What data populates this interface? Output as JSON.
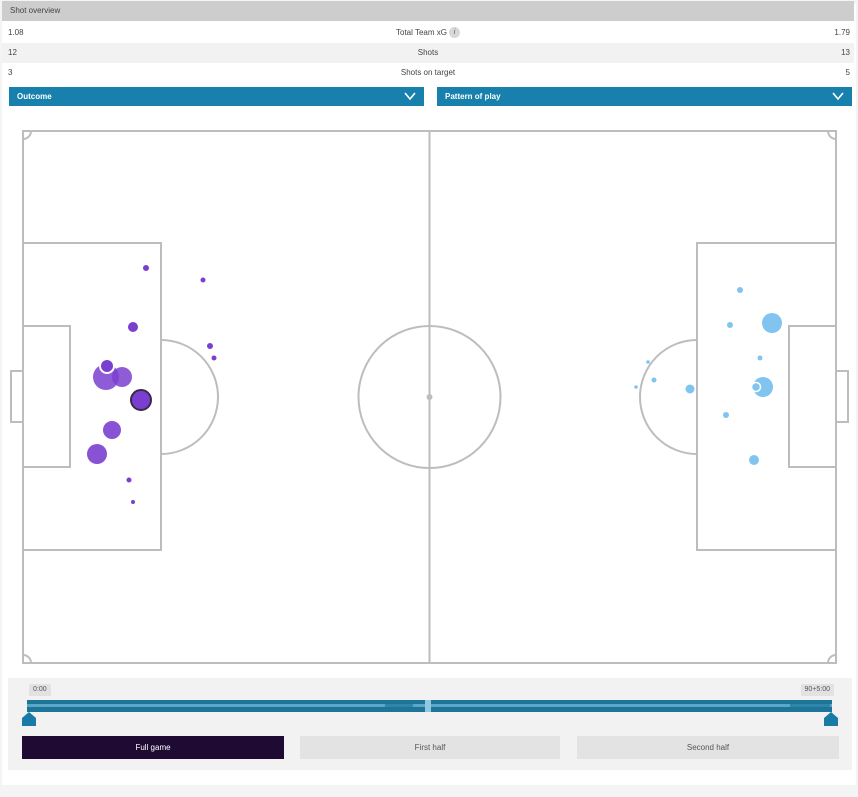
{
  "header": {
    "title": "Shot overview"
  },
  "stats": [
    {
      "home": "1.08",
      "label": "Total Team xG",
      "away": "1.79",
      "info": true
    },
    {
      "home": "12",
      "label": "Shots",
      "away": "13",
      "info": false
    },
    {
      "home": "3",
      "label": "Shots on target",
      "away": "5",
      "info": false
    }
  ],
  "filters": {
    "outcome_label": "Outcome",
    "pattern_label": "Pattern of play"
  },
  "colors": {
    "home_shot": "#7b3fd0",
    "away_shot": "#82c4f0",
    "accent": "#1780ad",
    "active_button": "#1e0a33"
  },
  "timeline": {
    "start_label": "0:00",
    "end_label": "90+5:00"
  },
  "period_buttons": {
    "full_game": "Full game",
    "first_half": "First half",
    "second_half": "Second half",
    "selected": "full_game"
  },
  "icons": {
    "info": "info-icon",
    "dropdown": "chevron-down-icon",
    "slider_handle": "slider-handle-icon"
  }
}
